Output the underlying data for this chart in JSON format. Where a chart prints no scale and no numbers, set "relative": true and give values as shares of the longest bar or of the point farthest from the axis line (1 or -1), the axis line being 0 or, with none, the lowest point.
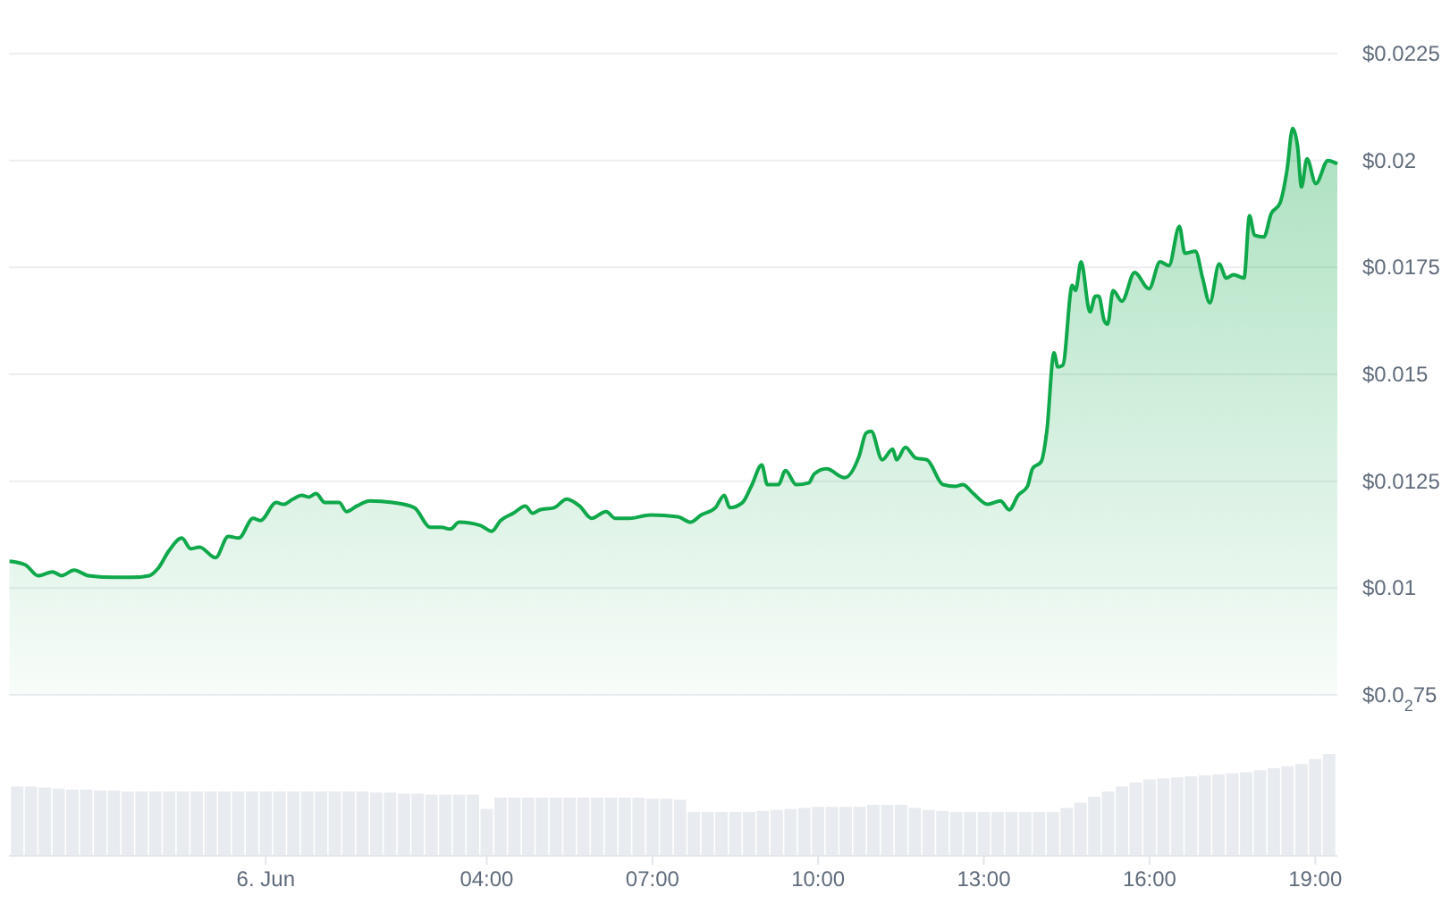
{
  "chart_data": [
    {
      "type": "area",
      "x": [
        -4.64,
        -4.35,
        -4.12,
        -3.86,
        -3.7,
        -3.47,
        -3.21,
        -2.72,
        -2.43,
        -2.11,
        -1.95,
        -1.75,
        -1.52,
        -1.36,
        -1.2,
        -0.91,
        -0.68,
        -0.49,
        -0.23,
        -0.1,
        0.19,
        0.32,
        0.49,
        0.65,
        0.78,
        0.91,
        1.07,
        1.33,
        1.46,
        1.65,
        1.88,
        2.3,
        2.69,
        2.98,
        3.18,
        3.34,
        3.5,
        3.89,
        4.09,
        4.25,
        4.48,
        4.7,
        4.83,
        4.96,
        5.22,
        5.45,
        5.68,
        5.9,
        6.16,
        6.33,
        6.58,
        6.97,
        7.46,
        7.69,
        7.88,
        8.14,
        8.3,
        8.4,
        8.63,
        8.79,
        8.98,
        9.08,
        9.28,
        9.41,
        9.6,
        9.83,
        9.93,
        10.15,
        10.48,
        10.74,
        10.87,
        10.96,
        11.16,
        11.35,
        11.42,
        11.58,
        11.77,
        11.97,
        12.26,
        12.49,
        12.62,
        12.81,
        13.07,
        13.3,
        13.46,
        13.62,
        13.79,
        13.88,
        14.04,
        14.14,
        14.27,
        14.34,
        14.43,
        14.6,
        14.66,
        14.76,
        14.92,
        15.02,
        15.08,
        15.18,
        15.24,
        15.34,
        15.5,
        15.73,
        15.99,
        16.19,
        16.35,
        16.54,
        16.64,
        16.83,
        16.96,
        17.09,
        17.26,
        17.39,
        17.52,
        17.71,
        17.81,
        17.9,
        18.07,
        18.2,
        18.36,
        18.49,
        18.59,
        18.68,
        18.75,
        18.85,
        19.01,
        19.23,
        19.4
      ],
      "series": [
        {
          "color": "#0fa84a",
          "values": [
            0.01063,
            0.01054,
            0.01029,
            0.01038,
            0.01029,
            0.01042,
            0.01029,
            0.01025,
            0.01025,
            0.01029,
            0.01046,
            0.01088,
            0.01117,
            0.01092,
            0.01096,
            0.01071,
            0.01121,
            0.01117,
            0.01163,
            0.01158,
            0.012,
            0.01196,
            0.01208,
            0.01217,
            0.01213,
            0.01221,
            0.012,
            0.012,
            0.01179,
            0.01192,
            0.01204,
            0.012,
            0.01188,
            0.01142,
            0.01142,
            0.01138,
            0.01154,
            0.01146,
            0.01133,
            0.01158,
            0.01175,
            0.01192,
            0.01175,
            0.01183,
            0.01188,
            0.01208,
            0.01192,
            0.01163,
            0.01179,
            0.01163,
            0.01163,
            0.01171,
            0.01167,
            0.01154,
            0.01171,
            0.01188,
            0.01217,
            0.01188,
            0.012,
            0.01238,
            0.01288,
            0.01242,
            0.01242,
            0.01275,
            0.01242,
            0.01246,
            0.01267,
            0.01279,
            0.01258,
            0.01308,
            0.01363,
            0.01367,
            0.013,
            0.01325,
            0.013,
            0.01329,
            0.01304,
            0.013,
            0.01242,
            0.01238,
            0.01242,
            0.01221,
            0.01196,
            0.01204,
            0.01183,
            0.01217,
            0.01238,
            0.01279,
            0.01296,
            0.01367,
            0.0155,
            0.01517,
            0.01521,
            0.01708,
            0.01696,
            0.01763,
            0.01646,
            0.01683,
            0.01683,
            0.01625,
            0.01617,
            0.01696,
            0.01671,
            0.01738,
            0.017,
            0.01763,
            0.01754,
            0.01846,
            0.01783,
            0.01788,
            0.01725,
            0.01667,
            0.01758,
            0.01725,
            0.01733,
            0.01725,
            0.01871,
            0.01825,
            0.01821,
            0.01875,
            0.019,
            0.01979,
            0.02075,
            0.02033,
            0.01938,
            0.02004,
            0.01946,
            0.02,
            0.01992
          ]
        }
      ],
      "xlim": [
        -4.65,
        19.4
      ],
      "ylim": [
        0.0075,
        0.0225
      ],
      "yticks": [
        {
          "value": 0.0075,
          "label": "$0.0$_{2}$75"
        },
        {
          "value": 0.01,
          "label": "$0.01"
        },
        {
          "value": 0.0125,
          "label": "$0.0125"
        },
        {
          "value": 0.015,
          "label": "$0.015"
        },
        {
          "value": 0.0175,
          "label": "$0.0175"
        },
        {
          "value": 0.02,
          "label": "$0.02"
        },
        {
          "value": 0.0225,
          "label": "$0.0225"
        }
      ],
      "grid": "y",
      "tick_labels": "y"
    },
    {
      "type": "bar",
      "relative": true,
      "color": "#e8ebef",
      "tick_labels": "x",
      "xlim": [
        -4.65,
        19.4
      ],
      "xticks": [
        {
          "value": 0,
          "label": "6. Jun"
        },
        {
          "value": 4,
          "label": "04:00"
        },
        {
          "value": 7,
          "label": "07:00"
        },
        {
          "value": 10,
          "label": "10:00"
        },
        {
          "value": 13,
          "label": "13:00"
        },
        {
          "value": 16,
          "label": "16:00"
        },
        {
          "value": 19,
          "label": "19:00"
        }
      ],
      "x": [
        -4.5,
        -4.25,
        -4,
        -3.75,
        -3.5,
        -3.25,
        -3,
        -2.75,
        -2.5,
        -2.25,
        -2,
        -1.75,
        -1.5,
        -1.25,
        -1,
        -0.75,
        -0.5,
        -0.25,
        0,
        0.25,
        0.5,
        0.75,
        1,
        1.25,
        1.5,
        1.75,
        2,
        2.25,
        2.5,
        2.75,
        3,
        3.25,
        3.5,
        3.75,
        4,
        4.25,
        4.5,
        4.75,
        5,
        5.25,
        5.5,
        5.75,
        6,
        6.25,
        6.5,
        6.75,
        7,
        7.25,
        7.5,
        7.75,
        8,
        8.25,
        8.5,
        8.75,
        9,
        9.25,
        9.5,
        9.75,
        10,
        10.25,
        10.5,
        10.75,
        11,
        11.25,
        11.5,
        11.75,
        12,
        12.25,
        12.5,
        12.75,
        13,
        13.25,
        13.5,
        13.75,
        14,
        14.25,
        14.5,
        14.75,
        15,
        15.25,
        15.5,
        15.75,
        16,
        16.25,
        16.5,
        16.75,
        17,
        17.25,
        17.5,
        17.75,
        18,
        18.25,
        18.5,
        18.75,
        19,
        19.25
      ],
      "values": [
        0.68,
        0.68,
        0.67,
        0.66,
        0.65,
        0.65,
        0.64,
        0.64,
        0.63,
        0.63,
        0.63,
        0.63,
        0.63,
        0.63,
        0.63,
        0.63,
        0.63,
        0.63,
        0.63,
        0.63,
        0.63,
        0.63,
        0.63,
        0.63,
        0.63,
        0.63,
        0.62,
        0.62,
        0.61,
        0.61,
        0.6,
        0.6,
        0.6,
        0.6,
        0.46,
        0.57,
        0.57,
        0.57,
        0.57,
        0.57,
        0.57,
        0.57,
        0.57,
        0.57,
        0.57,
        0.57,
        0.56,
        0.56,
        0.55,
        0.43,
        0.43,
        0.43,
        0.43,
        0.43,
        0.44,
        0.45,
        0.46,
        0.47,
        0.48,
        0.48,
        0.48,
        0.48,
        0.5,
        0.5,
        0.5,
        0.47,
        0.45,
        0.44,
        0.43,
        0.43,
        0.43,
        0.43,
        0.43,
        0.43,
        0.43,
        0.43,
        0.47,
        0.52,
        0.58,
        0.63,
        0.68,
        0.72,
        0.75,
        0.76,
        0.77,
        0.78,
        0.79,
        0.8,
        0.81,
        0.82,
        0.84,
        0.86,
        0.88,
        0.9,
        0.95,
        1
      ]
    }
  ]
}
